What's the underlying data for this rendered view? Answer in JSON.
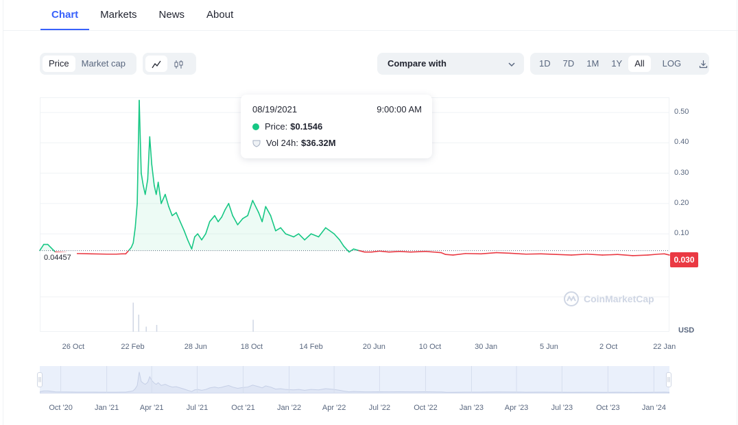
{
  "tabs": [
    {
      "label": "Chart",
      "active": true
    },
    {
      "label": "Markets",
      "active": false
    },
    {
      "label": "News",
      "active": false
    },
    {
      "label": "About",
      "active": false
    }
  ],
  "toolbar": {
    "metric": [
      {
        "label": "Price",
        "active": true
      },
      {
        "label": "Market cap",
        "active": false
      }
    ],
    "chart_style_icons": [
      "line-chart-icon",
      "candlestick-icon"
    ],
    "compare_label": "Compare with",
    "ranges": [
      {
        "label": "1D",
        "active": false
      },
      {
        "label": "7D",
        "active": false
      },
      {
        "label": "1M",
        "active": false
      },
      {
        "label": "1Y",
        "active": false
      },
      {
        "label": "All",
        "active": true
      }
    ],
    "log_label": "LOG",
    "download_icon": "download-icon"
  },
  "tooltip": {
    "date": "08/19/2021",
    "time": "9:00:00 AM",
    "price_label": "Price:",
    "price_value": "$0.1546",
    "vol_label": "Vol 24h:",
    "vol_value": "$36.32M"
  },
  "current_price_tag": "0.030",
  "reference_price": "0.04457",
  "currency_label": "USD",
  "watermark": "CoinMarketCap",
  "colors": {
    "up": "#16c784",
    "down": "#ea3943",
    "accent": "#3861fb"
  },
  "chart_data": {
    "type": "line",
    "ylabel": "USD",
    "ylim": [
      -0.015,
      0.55
    ],
    "yticks": [
      0.1,
      0.2,
      0.3,
      0.4,
      0.5
    ],
    "ytick_labels": [
      "0.10",
      "0.20",
      "0.30",
      "0.40",
      "0.50"
    ],
    "reference_value": 0.04457,
    "xtick_labels": [
      "26 Oct",
      "22 Feb",
      "28 Jun",
      "18 Oct",
      "14 Feb",
      "20 Jun",
      "10 Oct",
      "30 Jan",
      "5 Jun",
      "2 Oct",
      "22 Jan"
    ],
    "xtick_dates": [
      "2020-10-26",
      "2021-02-22",
      "2021-06-28",
      "2021-10-18",
      "2022-02-14",
      "2022-06-20",
      "2022-10-10",
      "2023-01-30",
      "2023-06-05",
      "2023-10-02",
      "2024-01-22"
    ],
    "series": [
      {
        "x": [
          "2020-08-20",
          "2020-08-28",
          "2020-09-05",
          "2020-09-20",
          "2020-10-10",
          "2020-11-01",
          "2020-12-01",
          "2021-01-01",
          "2021-01-20",
          "2021-02-01",
          "2021-02-08",
          "2021-02-14",
          "2021-02-19",
          "2021-02-23",
          "2021-02-27",
          "2021-03-03",
          "2021-03-07",
          "2021-03-11",
          "2021-03-15",
          "2021-03-19",
          "2021-03-24",
          "2021-03-28",
          "2021-04-01",
          "2021-04-06",
          "2021-04-10",
          "2021-04-14",
          "2021-04-20",
          "2021-04-28",
          "2021-05-05",
          "2021-05-12",
          "2021-05-20",
          "2021-05-28",
          "2021-06-05",
          "2021-06-12",
          "2021-06-20",
          "2021-06-26",
          "2021-07-02",
          "2021-07-10",
          "2021-07-18",
          "2021-07-26",
          "2021-08-05",
          "2021-08-12",
          "2021-08-19",
          "2021-08-26",
          "2021-09-02",
          "2021-09-10",
          "2021-09-20",
          "2021-09-30",
          "2021-10-10",
          "2021-10-20",
          "2021-11-01",
          "2021-11-08",
          "2021-11-15",
          "2021-11-25",
          "2021-12-05",
          "2021-12-15",
          "2021-12-25",
          "2022-01-10",
          "2022-01-20",
          "2022-02-01",
          "2022-02-14",
          "2022-03-01",
          "2022-03-15",
          "2022-04-01",
          "2022-04-12",
          "2022-04-20",
          "2022-05-01",
          "2022-05-10",
          "2022-05-20",
          "2022-06-01",
          "2022-06-15",
          "2022-07-01",
          "2022-07-20",
          "2022-08-10",
          "2022-09-01",
          "2022-10-01",
          "2022-11-01",
          "2022-11-10",
          "2022-11-25",
          "2022-12-20",
          "2023-01-20",
          "2023-02-20",
          "2023-03-20",
          "2023-04-20",
          "2023-05-20",
          "2023-06-20",
          "2023-07-20",
          "2023-08-20",
          "2023-09-20",
          "2023-10-20",
          "2023-11-20",
          "2023-12-20",
          "2024-01-10",
          "2024-01-22",
          "2024-02-01"
        ],
        "y": [
          0.045,
          0.065,
          0.065,
          0.04,
          0.038,
          0.035,
          0.034,
          0.033,
          0.033,
          0.034,
          0.034,
          0.045,
          0.055,
          0.07,
          0.12,
          0.2,
          0.54,
          0.3,
          0.26,
          0.23,
          0.28,
          0.42,
          0.33,
          0.26,
          0.23,
          0.27,
          0.2,
          0.23,
          0.19,
          0.16,
          0.17,
          0.14,
          0.11,
          0.08,
          0.05,
          0.09,
          0.1,
          0.08,
          0.1,
          0.14,
          0.16,
          0.14,
          0.155,
          0.18,
          0.2,
          0.16,
          0.13,
          0.15,
          0.16,
          0.21,
          0.17,
          0.14,
          0.19,
          0.16,
          0.11,
          0.12,
          0.1,
          0.09,
          0.1,
          0.08,
          0.1,
          0.09,
          0.12,
          0.1,
          0.08,
          0.06,
          0.04,
          0.05,
          0.045,
          0.04,
          0.04,
          0.043,
          0.04,
          0.042,
          0.04,
          0.042,
          0.038,
          0.032,
          0.03,
          0.035,
          0.034,
          0.038,
          0.036,
          0.033,
          0.034,
          0.032,
          0.03,
          0.033,
          0.03,
          0.032,
          0.028,
          0.03,
          0.033,
          0.034,
          0.03
        ]
      }
    ],
    "volume": {
      "x": [
        "2021-02-22",
        "2021-03-05",
        "2021-03-20",
        "2021-04-10",
        "2021-10-20"
      ],
      "y": [
        0.85,
        0.5,
        0.15,
        0.2,
        0.35
      ]
    },
    "navigator_ticks": [
      "Oct '20",
      "Jan '21",
      "Apr '21",
      "Jul '21",
      "Oct '21",
      "Jan '22",
      "Apr '22",
      "Jul '22",
      "Oct '22",
      "Jan '23",
      "Apr '23",
      "Jul '23",
      "Oct '23",
      "Jan '24"
    ],
    "navigator_dates": [
      "2020-10-01",
      "2021-01-01",
      "2021-04-01",
      "2021-07-01",
      "2021-10-01",
      "2022-01-01",
      "2022-04-01",
      "2022-07-01",
      "2022-10-01",
      "2023-01-01",
      "2023-04-01",
      "2023-07-01",
      "2023-10-01",
      "2024-01-01"
    ]
  }
}
